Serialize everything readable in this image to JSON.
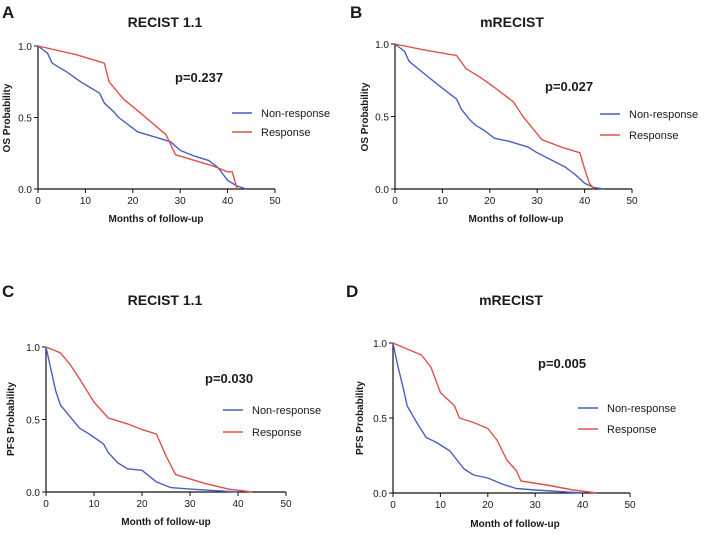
{
  "chart_data": [
    {
      "panel_label": "A",
      "title": "RECIST 1.1",
      "type": "line",
      "xlabel": "Months of follow-up",
      "ylabel": "OS Probability",
      "xlim": [
        0,
        50
      ],
      "ylim": [
        0,
        1
      ],
      "xticks": [
        "0",
        "10",
        "20",
        "30",
        "40",
        "50"
      ],
      "yticks": [
        "0.0",
        "0.5",
        "1.0"
      ],
      "annotation": "p=0.237",
      "legend_position": "right",
      "series": [
        {
          "name": "Non-response",
          "color": "#4a5fc1",
          "x": [
            0,
            2,
            3,
            6,
            9,
            11,
            13,
            14,
            16,
            17,
            19,
            21,
            24,
            28,
            30,
            33,
            36,
            38,
            40,
            42,
            44
          ],
          "y": [
            1.0,
            0.95,
            0.88,
            0.82,
            0.75,
            0.71,
            0.67,
            0.6,
            0.54,
            0.5,
            0.45,
            0.4,
            0.37,
            0.33,
            0.27,
            0.23,
            0.2,
            0.15,
            0.06,
            0.02,
            0.0
          ]
        },
        {
          "name": "Response",
          "color": "#e0504b",
          "x": [
            0,
            8,
            14,
            15,
            18,
            22,
            27,
            29,
            33,
            37,
            40,
            41,
            42
          ],
          "y": [
            1.0,
            0.94,
            0.88,
            0.75,
            0.63,
            0.52,
            0.38,
            0.24,
            0.2,
            0.16,
            0.12,
            0.12,
            0.0
          ]
        }
      ]
    },
    {
      "panel_label": "B",
      "title": "mRECIST",
      "type": "line",
      "xlabel": "Months of follow-up",
      "ylabel": "OS Probability",
      "xlim": [
        0,
        50
      ],
      "ylim": [
        0,
        1
      ],
      "xticks": [
        "0",
        "10",
        "20",
        "30",
        "40",
        "50"
      ],
      "yticks": [
        "0.0",
        "0.5",
        "1.0"
      ],
      "annotation": "p=0.027",
      "legend_position": "right",
      "series": [
        {
          "name": "Non-response",
          "color": "#4a5fc1",
          "x": [
            0,
            2,
            3,
            6,
            9,
            11,
            13,
            14,
            16,
            17,
            19,
            21,
            24,
            28,
            30,
            33,
            36,
            38,
            40,
            42,
            44
          ],
          "y": [
            1.0,
            0.95,
            0.88,
            0.8,
            0.72,
            0.67,
            0.62,
            0.55,
            0.47,
            0.44,
            0.4,
            0.35,
            0.33,
            0.29,
            0.25,
            0.2,
            0.15,
            0.1,
            0.04,
            0.01,
            0.0
          ]
        },
        {
          "name": "Response",
          "color": "#e0504b",
          "x": [
            0,
            6,
            13,
            15,
            18,
            21,
            25,
            27,
            31,
            35,
            39,
            40,
            41,
            42
          ],
          "y": [
            1.0,
            0.96,
            0.92,
            0.83,
            0.77,
            0.7,
            0.6,
            0.5,
            0.34,
            0.29,
            0.25,
            0.14,
            0.04,
            0.0
          ]
        }
      ]
    },
    {
      "panel_label": "C",
      "title": "RECIST 1.1",
      "type": "line",
      "xlabel": "Month of follow-up",
      "ylabel": "PFS Probability",
      "xlim": [
        0,
        50
      ],
      "ylim": [
        0,
        1
      ],
      "xticks": [
        "0",
        "10",
        "20",
        "30",
        "40",
        "50"
      ],
      "yticks": [
        "0.0",
        "0.5",
        "1.0"
      ],
      "annotation": "p=0.030",
      "legend_position": "right",
      "series": [
        {
          "name": "Non-response",
          "color": "#4a5fc1",
          "x": [
            0,
            1,
            2,
            3,
            5,
            7,
            9,
            12,
            13,
            15,
            17,
            20,
            23,
            26,
            30,
            35,
            40
          ],
          "y": [
            1.0,
            0.85,
            0.7,
            0.6,
            0.52,
            0.44,
            0.4,
            0.33,
            0.27,
            0.2,
            0.16,
            0.15,
            0.07,
            0.03,
            0.02,
            0.01,
            0.0
          ]
        },
        {
          "name": "Response",
          "color": "#e0504b",
          "x": [
            0,
            3,
            5,
            7,
            10,
            13,
            17,
            20,
            23,
            25,
            27,
            33,
            38,
            43
          ],
          "y": [
            1.0,
            0.96,
            0.88,
            0.78,
            0.62,
            0.51,
            0.47,
            0.43,
            0.4,
            0.25,
            0.12,
            0.06,
            0.02,
            0.0
          ]
        }
      ]
    },
    {
      "panel_label": "D",
      "title": "mRECIST",
      "type": "line",
      "xlabel": "Month of follow-up",
      "ylabel": "PFS Probability",
      "xlim": [
        0,
        50
      ],
      "ylim": [
        0,
        1
      ],
      "xticks": [
        "0",
        "10",
        "20",
        "30",
        "40",
        "50"
      ],
      "yticks": [
        "0.0",
        "0.5",
        "1.0"
      ],
      "annotation": "p=0.005",
      "legend_position": "right",
      "series": [
        {
          "name": "Non-response",
          "color": "#4a5fc1",
          "x": [
            0,
            1,
            2,
            3,
            5,
            7,
            9,
            12,
            13,
            15,
            17,
            20,
            23,
            26,
            30,
            35,
            40
          ],
          "y": [
            1.0,
            0.85,
            0.72,
            0.58,
            0.47,
            0.37,
            0.34,
            0.28,
            0.24,
            0.16,
            0.12,
            0.1,
            0.06,
            0.03,
            0.02,
            0.01,
            0.0
          ]
        },
        {
          "name": "Response",
          "color": "#e0504b",
          "x": [
            0,
            3,
            6,
            8,
            10,
            13,
            14,
            17,
            20,
            22,
            24,
            26,
            27,
            33,
            38,
            43
          ],
          "y": [
            1.0,
            0.96,
            0.92,
            0.84,
            0.67,
            0.58,
            0.5,
            0.47,
            0.43,
            0.35,
            0.22,
            0.15,
            0.08,
            0.05,
            0.02,
            0.0
          ]
        }
      ]
    }
  ]
}
